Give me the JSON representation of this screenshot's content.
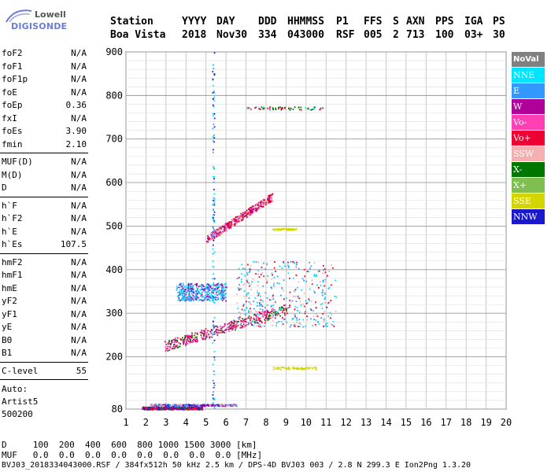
{
  "logo": {
    "line1": "Lowell",
    "line2": "DIGISONDE"
  },
  "header": {
    "labels": [
      "Station",
      "YYYY",
      "DAY",
      "DDD",
      "HHMMSS",
      "P1",
      "FFS",
      "S",
      "AXN",
      "PPS",
      "IGA",
      "PS"
    ],
    "values": [
      "Boa Vista",
      "2018",
      "Nov30",
      "334",
      "043000",
      "RSF",
      "005",
      "2",
      "713",
      "100",
      "03+",
      "30"
    ]
  },
  "params": {
    "group1": [
      {
        "name": "foF2",
        "value": "N/A"
      },
      {
        "name": "foF1",
        "value": "N/A"
      },
      {
        "name": "foF1p",
        "value": "N/A"
      },
      {
        "name": "foE",
        "value": "N/A"
      },
      {
        "name": "foEp",
        "value": "0.36"
      },
      {
        "name": "fxI",
        "value": "N/A"
      },
      {
        "name": "foEs",
        "value": "3.90"
      },
      {
        "name": "fmin",
        "value": "2.10"
      }
    ],
    "group2": [
      {
        "name": "MUF(D)",
        "value": "N/A"
      },
      {
        "name": "M(D)",
        "value": "N/A"
      },
      {
        "name": "D",
        "value": "N/A"
      }
    ],
    "group3": [
      {
        "name": "h`F",
        "value": "N/A"
      },
      {
        "name": "h`F2",
        "value": "N/A"
      },
      {
        "name": "h`E",
        "value": "N/A"
      },
      {
        "name": "h`Es",
        "value": "107.5"
      }
    ],
    "group4": [
      {
        "name": "hmF2",
        "value": "N/A"
      },
      {
        "name": "hmF1",
        "value": "N/A"
      },
      {
        "name": "hmE",
        "value": "N/A"
      },
      {
        "name": "yF2",
        "value": "N/A"
      },
      {
        "name": "yF1",
        "value": "N/A"
      },
      {
        "name": "yE",
        "value": "N/A"
      },
      {
        "name": "B0",
        "value": "N/A"
      },
      {
        "name": "B1",
        "value": "N/A"
      }
    ],
    "group5": [
      {
        "name": "C-level",
        "value": "55"
      }
    ],
    "auto": [
      "Auto:",
      "Artist5",
      "500200"
    ]
  },
  "legend": [
    {
      "label": "NoVal",
      "color": "#808080"
    },
    {
      "label": "NNE",
      "color": "#00e5ff"
    },
    {
      "label": "E",
      "color": "#3399ff"
    },
    {
      "label": "W",
      "color": "#b0009a"
    },
    {
      "label": "Vo-",
      "color": "#ff3fb4"
    },
    {
      "label": "Vo+",
      "color": "#ee0033"
    },
    {
      "label": "SSW",
      "color": "#f4b0b0"
    },
    {
      "label": "X-",
      "color": "#007700"
    },
    {
      "label": "X+",
      "color": "#7fbf4f"
    },
    {
      "label": "SSE",
      "color": "#d4d400"
    },
    {
      "label": "NNW",
      "color": "#1a1acc"
    }
  ],
  "footer": {
    "d_row": "D     100  200  400  600  800 1000 1500 3000 [km]",
    "muf_row": "MUF   0.0  0.0  0.0  0.0  0.0  0.0  0.0  0.0 [MHz]",
    "info": "BVJ03_2018334043000.RSF / 384fx512h 50 kHz 2.5 km / DPS-4D BVJ03 003 / 2.8 N 299.3 E Ion2Png 1.3.20"
  },
  "chart_data": {
    "type": "scatter",
    "xlim": [
      1,
      20
    ],
    "ylim": [
      80,
      900
    ],
    "xticks": [
      1,
      2,
      3,
      4,
      5,
      6,
      7,
      8,
      9,
      10,
      11,
      12,
      13,
      14,
      15,
      16,
      17,
      18,
      19,
      20
    ],
    "yticks": [
      80,
      200,
      300,
      400,
      500,
      600,
      700,
      800,
      900
    ],
    "grid": true,
    "clusters": [
      {
        "name": "Es trace",
        "x": [
          1.8,
          4.8
        ],
        "y": [
          80,
          86
        ],
        "colors": [
          "#ee0033",
          "#b0009a",
          "#007700",
          "#1a1acc"
        ]
      },
      {
        "name": "Es multiple",
        "x": [
          2.2,
          6.5
        ],
        "y": [
          88,
          92
        ],
        "colors": [
          "#b0009a",
          "#f4b0b0",
          "#3399ff",
          "#1a1acc"
        ]
      },
      {
        "name": "F trace",
        "x": [
          2.9,
          9.0
        ],
        "y": [
          220,
          320
        ],
        "colors": [
          "#ee0033",
          "#b0009a",
          "#ff3fb4",
          "#007700"
        ]
      },
      {
        "name": "F spread",
        "x": [
          6.5,
          11.5
        ],
        "y": [
          270,
          420
        ],
        "colors": [
          "#00e5ff",
          "#f4b0b0",
          "#3399ff",
          "#ee0033"
        ]
      },
      {
        "name": "upper cluster",
        "x": [
          3.5,
          6.0
        ],
        "y": [
          330,
          370
        ],
        "colors": [
          "#3399ff",
          "#00e5ff",
          "#b0009a"
        ]
      },
      {
        "name": "second hop",
        "x": [
          5.0,
          8.3
        ],
        "y": [
          460,
          590
        ],
        "colors": [
          "#b0009a",
          "#ee0033",
          "#f4b0b0"
        ]
      },
      {
        "name": "high band",
        "x": [
          7.0,
          10.8
        ],
        "y": [
          768,
          775
        ],
        "colors": [
          "#007700",
          "#00e5ff",
          "#ee0033"
        ]
      },
      {
        "name": "SSE band",
        "x": [
          8.3,
          9.5
        ],
        "y": [
          492,
          496
        ],
        "colors": [
          "#d4d400"
        ]
      },
      {
        "name": "SSE band 2",
        "x": [
          8.3,
          10.5
        ],
        "y": [
          172,
          178
        ],
        "colors": [
          "#d4d400"
        ]
      },
      {
        "name": "blue spike",
        "x": [
          5.3,
          5.4
        ],
        "y": [
          80,
          900
        ],
        "colors": [
          "#1a1acc",
          "#00e5ff",
          "#3399ff"
        ]
      }
    ]
  }
}
